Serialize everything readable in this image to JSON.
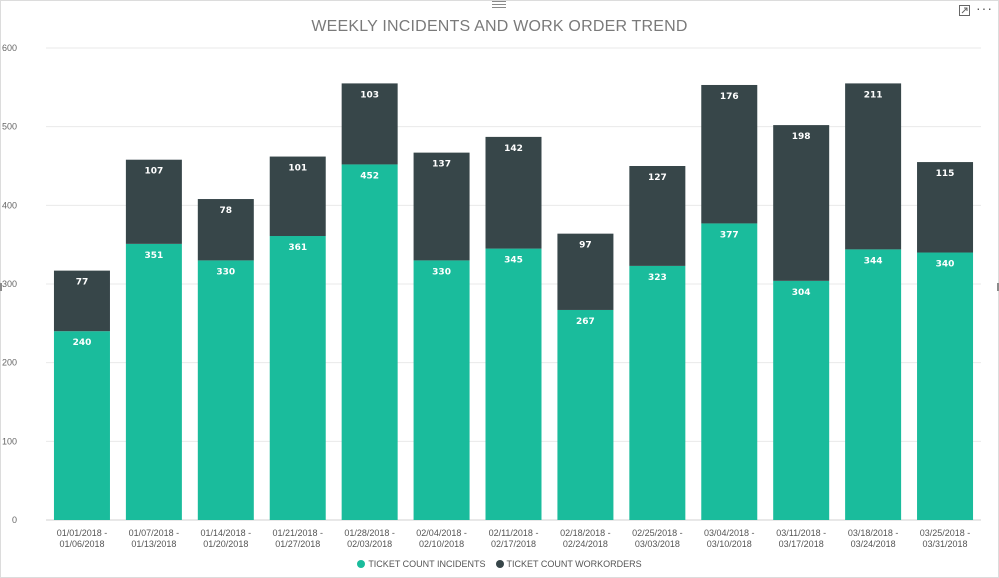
{
  "chart_data": {
    "type": "bar",
    "stacked": true,
    "title": "WEEKLY INCIDENTS AND WORK ORDER TREND",
    "categories": [
      [
        "01/01/2018 -",
        "01/06/2018"
      ],
      [
        "01/07/2018 -",
        "01/13/2018"
      ],
      [
        "01/14/2018 -",
        "01/20/2018"
      ],
      [
        "01/21/2018 -",
        "01/27/2018"
      ],
      [
        "01/28/2018 -",
        "02/03/2018"
      ],
      [
        "02/04/2018 -",
        "02/10/2018"
      ],
      [
        "02/11/2018 -",
        "02/17/2018"
      ],
      [
        "02/18/2018 -",
        "02/24/2018"
      ],
      [
        "02/25/2018 -",
        "03/03/2018"
      ],
      [
        "03/04/2018 -",
        "03/10/2018"
      ],
      [
        "03/11/2018 -",
        "03/17/2018"
      ],
      [
        "03/18/2018 -",
        "03/24/2018"
      ],
      [
        "03/25/2018 -",
        "03/31/2018"
      ]
    ],
    "series": [
      {
        "name": "TICKET COUNT INCIDENTS",
        "color": "#1abc9c",
        "values": [
          240,
          351,
          330,
          361,
          452,
          330,
          345,
          267,
          323,
          377,
          304,
          344,
          340
        ]
      },
      {
        "name": "TICKET COUNT WORKORDERS",
        "color": "#374649",
        "values": [
          77,
          107,
          78,
          101,
          103,
          137,
          142,
          97,
          127,
          176,
          198,
          211,
          115
        ]
      }
    ],
    "ylim": [
      0,
      600
    ],
    "yticks": [
      0,
      100,
      200,
      300,
      400,
      500,
      600
    ],
    "grid": true,
    "legend_position": "bottom-center"
  },
  "icons": {
    "focus": "focus-mode-icon",
    "more": "more-options-icon",
    "drag": "drag-handle-icon"
  },
  "more_glyph": "···"
}
